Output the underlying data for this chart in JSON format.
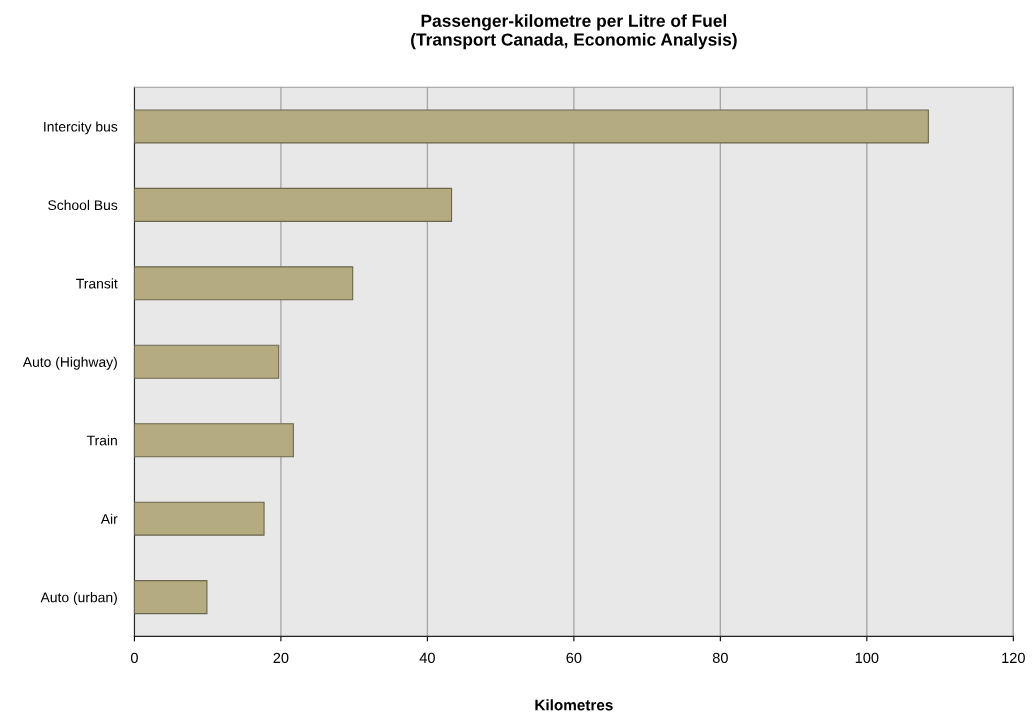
{
  "chart_data": {
    "type": "bar",
    "orientation": "horizontal",
    "title": "Passenger-kilometre per Litre of Fuel\n(Transport Canada, Economic Analysis)",
    "xlabel": "Kilometres",
    "categories": [
      "Intercity bus",
      "School Bus",
      "Transit",
      "Auto (Highway)",
      "Train",
      "Air",
      "Auto (urban)"
    ],
    "values": [
      108.4,
      43.3,
      29.8,
      19.7,
      21.7,
      17.7,
      9.9
    ],
    "color": "#b5ab80",
    "xlim": [
      0,
      120
    ],
    "xticks": [
      0,
      20,
      40,
      60,
      80,
      100,
      120
    ],
    "grid": "x",
    "legend": false
  }
}
